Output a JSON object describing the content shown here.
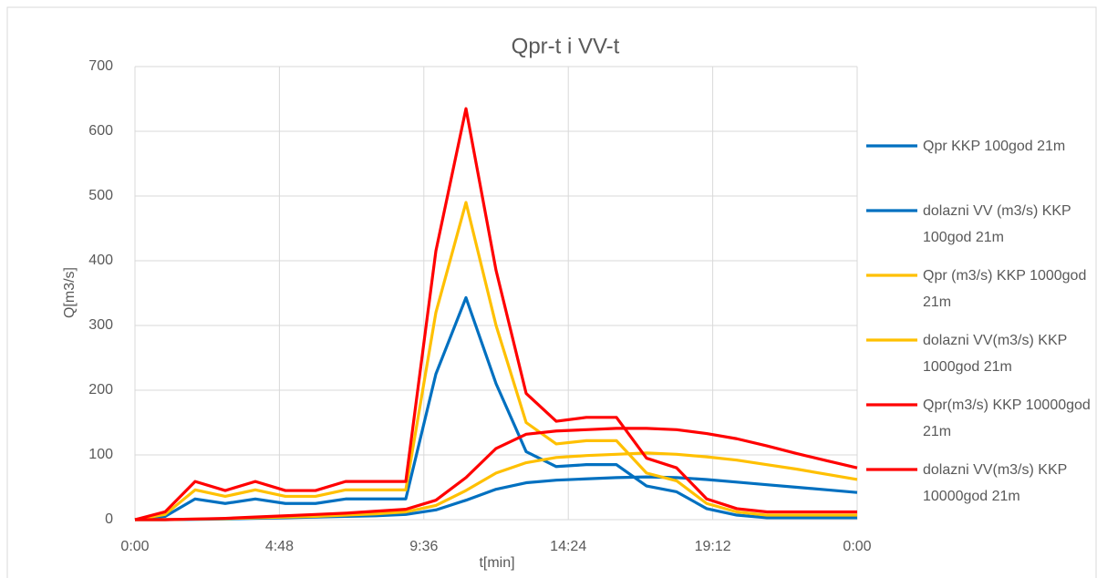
{
  "chart_data": {
    "type": "line",
    "title": "Qpr-t i VV-t",
    "x_label": "t[min]",
    "y_label": "Q[m3/s]",
    "x": [
      0,
      1,
      2,
      3,
      4,
      5,
      6,
      7,
      8,
      9,
      10,
      11,
      12,
      13,
      14,
      15,
      16,
      17,
      18,
      19,
      20,
      21,
      22,
      23,
      24
    ],
    "xlim": [
      0,
      24
    ],
    "xticks": [
      {
        "value": 0,
        "label": "0:00"
      },
      {
        "value": 4.8,
        "label": "4:48"
      },
      {
        "value": 9.6,
        "label": "9:36"
      },
      {
        "value": 14.4,
        "label": "14:24"
      },
      {
        "value": 19.2,
        "label": "19:12"
      },
      {
        "value": 24,
        "label": "0:00"
      }
    ],
    "ylim": [
      0,
      700
    ],
    "yticks": [
      0,
      100,
      200,
      300,
      400,
      500,
      600,
      700
    ],
    "grid": true,
    "legend": "right",
    "series": [
      {
        "name": "Qpr KKP 100god 21m",
        "color": "#0070c0",
        "values": [
          0,
          0,
          0.5,
          1,
          2,
          3,
          4,
          5,
          6,
          8,
          15,
          30,
          47,
          57,
          61,
          63,
          65,
          66,
          65,
          62,
          58,
          54,
          50,
          46,
          42
        ]
      },
      {
        "name": "dolazni VV (m3/s) KKP 100god 21m",
        "color": "#0070c0",
        "values": [
          0,
          5,
          32,
          25,
          32,
          25,
          25,
          32,
          32,
          32,
          225,
          343,
          210,
          105,
          82,
          85,
          85,
          52,
          43,
          17,
          7,
          3,
          3,
          3,
          3
        ]
      },
      {
        "name": "Qpr (m3/s) KKP 1000god 21m",
        "color": "#ffc000",
        "values": [
          0,
          0,
          1,
          1.5,
          3,
          4,
          5,
          7,
          9,
          12,
          22,
          45,
          72,
          88,
          96,
          99,
          101,
          103,
          101,
          97,
          92,
          85,
          78,
          70,
          62
        ]
      },
      {
        "name": "dolazni VV(m3/s) KKP 1000god 21m",
        "color": "#ffc000",
        "values": [
          0,
          8,
          46,
          36,
          46,
          36,
          36,
          46,
          46,
          46,
          320,
          490,
          300,
          150,
          117,
          122,
          122,
          72,
          60,
          25,
          12,
          7,
          7,
          7,
          7
        ]
      },
      {
        "name": "Qpr(m3/s) KKP 10000god 21m",
        "color": "#ff0000",
        "values": [
          0,
          0,
          1,
          2,
          4,
          6,
          8,
          10,
          13,
          16,
          30,
          65,
          110,
          132,
          137,
          139,
          141,
          141,
          139,
          133,
          125,
          114,
          102,
          91,
          80
        ]
      },
      {
        "name": "dolazni VV(m3/s) KKP 10000god 21m",
        "color": "#ff0000",
        "values": [
          0,
          12,
          59,
          45,
          59,
          45,
          45,
          59,
          59,
          59,
          415,
          635,
          385,
          195,
          152,
          158,
          158,
          95,
          80,
          32,
          17,
          12,
          12,
          12,
          12
        ]
      }
    ]
  }
}
